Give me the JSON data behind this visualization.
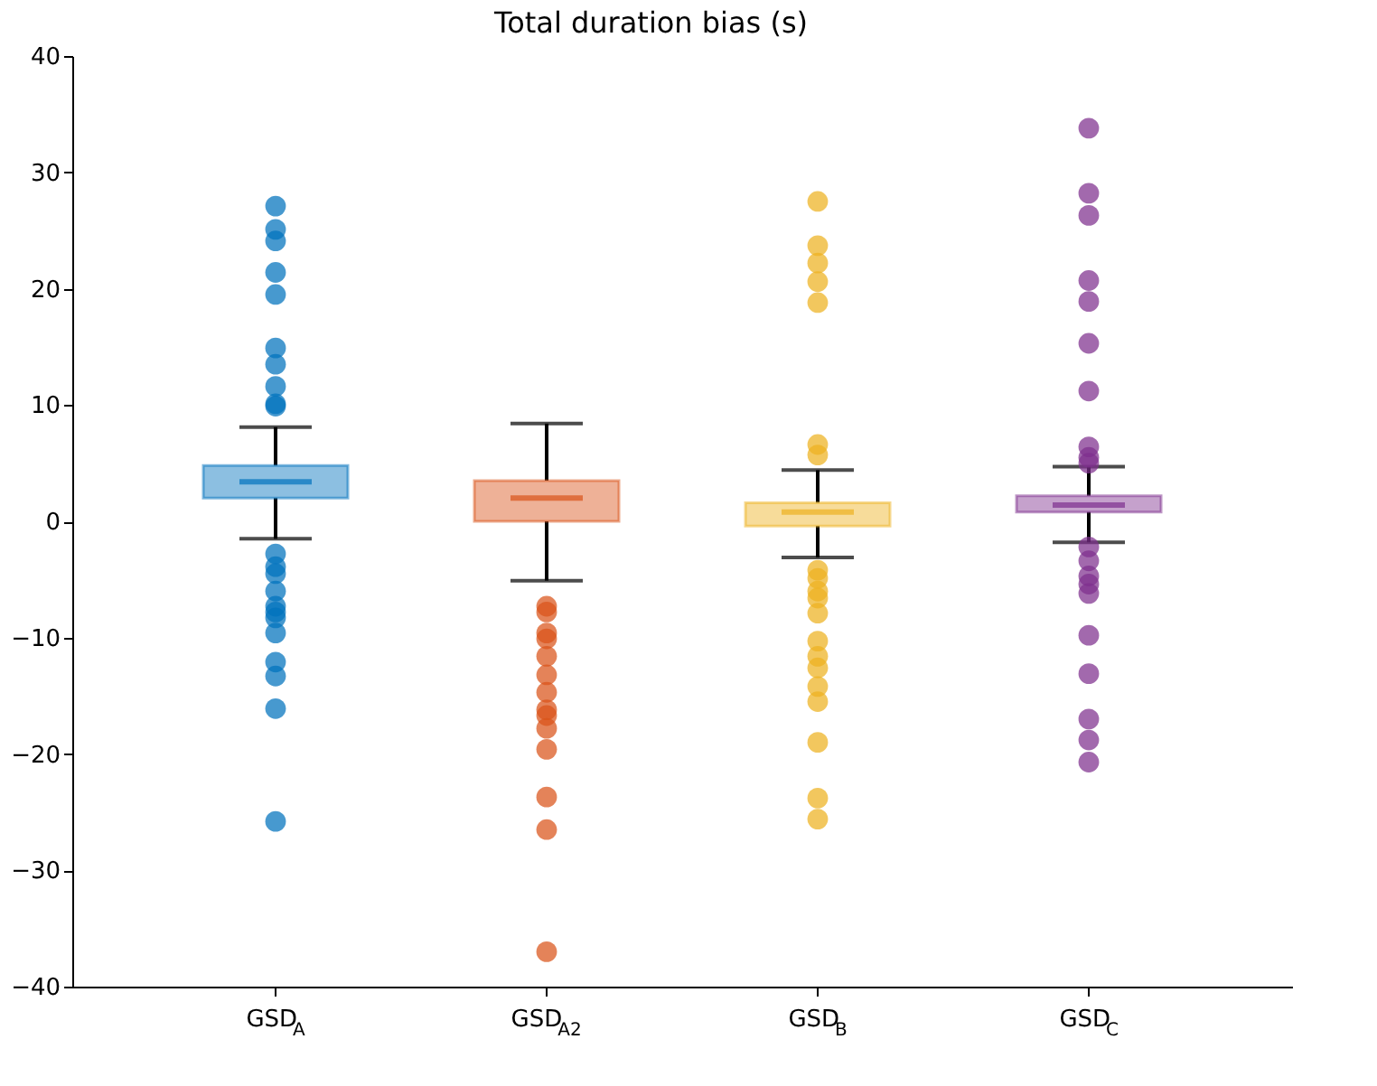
{
  "chart_data": {
    "type": "box",
    "title": "Total duration bias (s)",
    "categories": [
      "GSD$_{A}$",
      "GSD$_{A2}$",
      "GSD$_{B}$",
      "GSD$_{C}$"
    ],
    "colors": [
      "#0072bd",
      "#d95319",
      "#edb120",
      "#7e2f8e"
    ],
    "boxes": [
      {
        "low": -1.5,
        "q1": 2.0,
        "median": 3.4,
        "q3": 4.8,
        "high": 8.1,
        "outliers": [
          27.1,
          25.1,
          24.1,
          21.4,
          19.5,
          14.9,
          13.5,
          11.6,
          10.1,
          9.9,
          -2.8,
          -3.9,
          -4.5,
          -6.0,
          -7.3,
          -7.8,
          -8.3,
          -9.6,
          -12.1,
          -13.3,
          -16.1,
          -25.8
        ]
      },
      {
        "low": -5.1,
        "q1": 0.0,
        "median": 2.0,
        "q3": 3.5,
        "high": 8.4,
        "outliers": [
          -7.3,
          -7.8,
          -9.6,
          -10.1,
          -11.6,
          -13.2,
          -14.7,
          -16.2,
          -16.7,
          -17.8,
          -19.6,
          -23.7,
          -26.5,
          -37.0
        ]
      },
      {
        "low": -3.1,
        "q1": -0.4,
        "median": 0.8,
        "q3": 1.6,
        "high": 4.4,
        "outliers": [
          27.5,
          23.7,
          22.2,
          20.6,
          18.8,
          6.6,
          5.7,
          -4.2,
          -4.9,
          -6.0,
          -6.6,
          -7.9,
          -10.3,
          -11.6,
          -12.6,
          -14.2,
          -15.5,
          -19.0,
          -23.8,
          -25.6
        ]
      },
      {
        "low": -1.8,
        "q1": 0.8,
        "median": 1.4,
        "q3": 2.2,
        "high": 4.7,
        "outliers": [
          33.8,
          28.2,
          26.3,
          20.7,
          18.9,
          15.3,
          11.2,
          6.4,
          5.5,
          5.0,
          -2.2,
          -3.4,
          -4.7,
          -5.4,
          -6.2,
          -9.8,
          -13.1,
          -17.0,
          -18.8,
          -20.7
        ]
      }
    ],
    "ylim": [
      -40,
      40
    ],
    "yticks": [
      -40,
      -30,
      -20,
      -10,
      0,
      10,
      20,
      30,
      40
    ],
    "grid": false,
    "legend": false
  }
}
